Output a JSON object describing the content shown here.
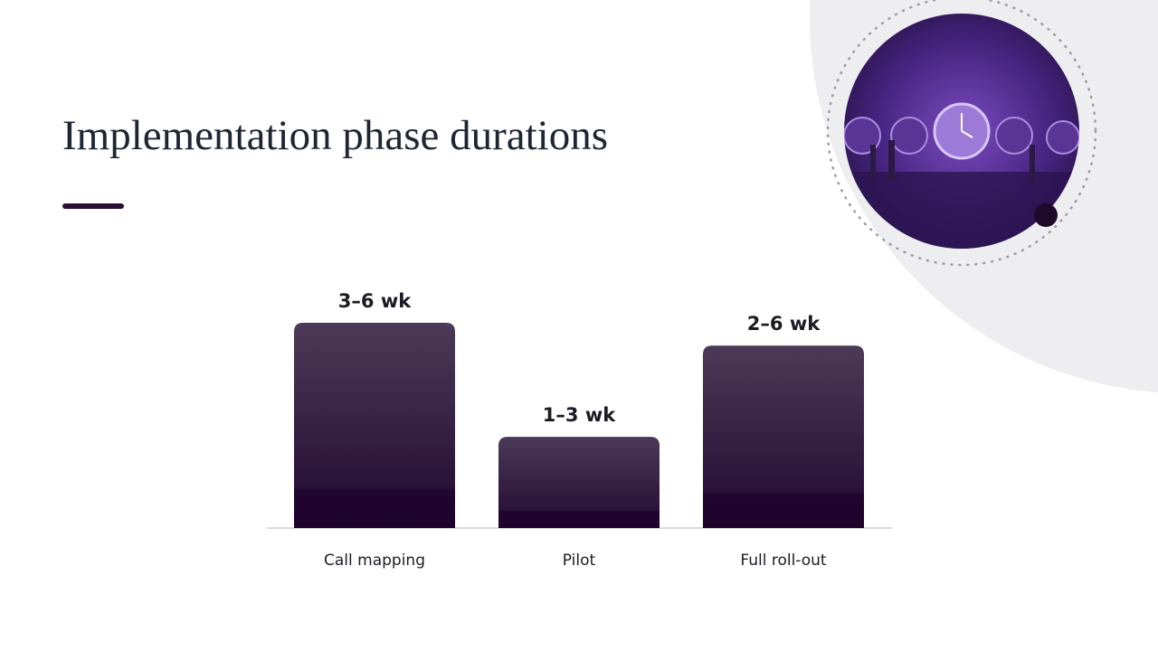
{
  "chart_data": {
    "type": "bar",
    "title": "Implementation phase durations",
    "categories": [
      "Call mapping",
      "Pilot",
      "Full roll-out"
    ],
    "values": [
      4.5,
      2,
      4
    ],
    "value_labels": [
      "3–6 wk",
      "1–3 wk",
      "2–6 wk"
    ],
    "color": "#3a2447"
  }
}
